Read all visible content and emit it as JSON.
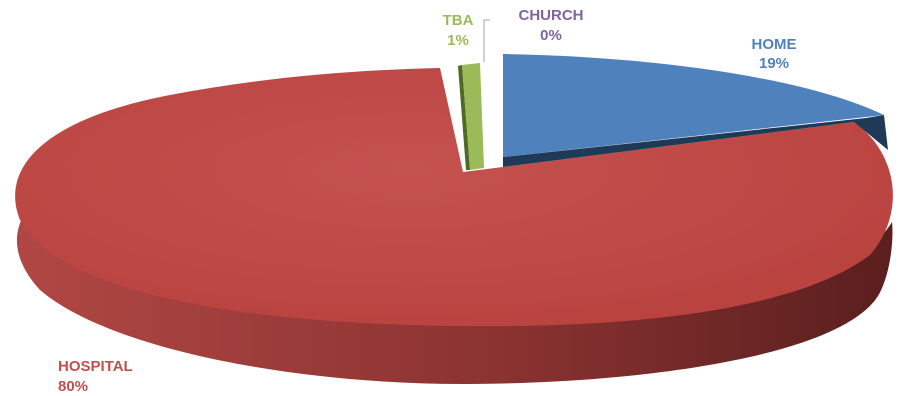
{
  "chart_data": {
    "type": "pie",
    "style": "3d-exploded",
    "slices": [
      {
        "label": "HOME",
        "value": 19,
        "value_label": "19%",
        "color": "#4F81BD",
        "side_color": "#233F5F",
        "label_color": "#4F81BD"
      },
      {
        "label": "HOSPITAL",
        "value": 80,
        "value_label": "80%",
        "color": "#C0504D",
        "side_color": "#6B2524",
        "label_color": "#C0504D"
      },
      {
        "label": "TBA",
        "value": 1,
        "value_label": "1%",
        "color": "#9BBB59",
        "side_color": "#4E6A24",
        "label_color": "#9BBB59"
      },
      {
        "label": "CHURCH",
        "value": 0,
        "value_label": "0%",
        "color": "#8064A2",
        "side_color": "#4A3863",
        "label_color": "#8064A2"
      }
    ],
    "legend": "none"
  }
}
